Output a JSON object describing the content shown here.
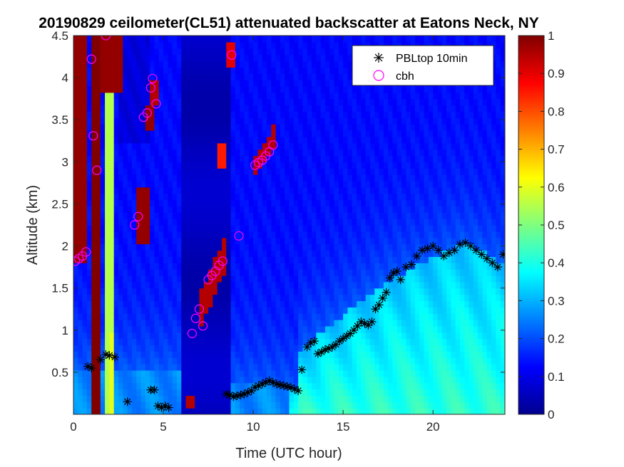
{
  "chart_data": {
    "type": "heatmap",
    "title": "20190829 ceilometer(CL51) attenuated backscatter at Eatons Neck, NY",
    "xlabel": "Time (UTC hour)",
    "ylabel": "Altitude (km)",
    "xlim": [
      0,
      24
    ],
    "ylim": [
      0,
      4.5
    ],
    "xticks": [
      0,
      5,
      10,
      15,
      20
    ],
    "yticks": [
      0.5,
      1,
      1.5,
      2,
      2.5,
      3,
      3.5,
      4,
      4.5
    ],
    "colorbar": {
      "colormap": "jet",
      "limits": [
        0,
        1
      ],
      "ticks": [
        0,
        0.1,
        0.2,
        0.3,
        0.4,
        0.5,
        0.6,
        0.7,
        0.8,
        0.9,
        1
      ]
    },
    "legend": {
      "location": "top-right",
      "entries": [
        "PBLtop 10min",
        "cbh"
      ]
    },
    "series": [
      {
        "name": "PBLtop 10min",
        "marker": "asterisk",
        "color": "#000000",
        "x": [
          0.8,
          1.0,
          1.5,
          1.8,
          2.0,
          2.3,
          3.0,
          4.3,
          4.5,
          4.7,
          4.9,
          5.1,
          5.3,
          8.5,
          8.7,
          8.9,
          9.1,
          9.3,
          9.5,
          9.7,
          9.9,
          10.1,
          10.3,
          10.5,
          10.7,
          10.9,
          11.1,
          11.3,
          11.5,
          11.7,
          11.9,
          12.1,
          12.3,
          12.5,
          12.7,
          13.0,
          13.2,
          13.4,
          13.6,
          13.8,
          14.0,
          14.2,
          14.4,
          14.6,
          14.8,
          15.0,
          15.2,
          15.4,
          15.6,
          15.8,
          16.0,
          16.2,
          16.4,
          16.6,
          16.8,
          17.0,
          17.2,
          17.4,
          17.6,
          17.8,
          18.0,
          18.2,
          18.5,
          18.8,
          19.1,
          19.4,
          19.7,
          20.0,
          20.3,
          20.6,
          20.9,
          21.2,
          21.5,
          21.8,
          22.1,
          22.4,
          22.7,
          23.0,
          23.3,
          23.6,
          23.9
        ],
        "y": [
          0.57,
          0.55,
          0.65,
          0.71,
          0.7,
          0.68,
          0.15,
          0.29,
          0.29,
          0.1,
          0.08,
          0.1,
          0.08,
          0.24,
          0.23,
          0.21,
          0.22,
          0.23,
          0.24,
          0.26,
          0.28,
          0.32,
          0.34,
          0.36,
          0.38,
          0.4,
          0.38,
          0.36,
          0.35,
          0.34,
          0.33,
          0.32,
          0.3,
          0.28,
          0.53,
          0.8,
          0.85,
          0.87,
          0.72,
          0.74,
          0.77,
          0.78,
          0.8,
          0.83,
          0.87,
          0.9,
          0.93,
          0.96,
          1.0,
          1.05,
          1.1,
          1.08,
          1.06,
          1.1,
          1.25,
          1.3,
          1.38,
          1.45,
          1.62,
          1.68,
          1.7,
          1.6,
          1.75,
          1.78,
          1.88,
          1.95,
          1.97,
          2.0,
          1.95,
          1.88,
          1.92,
          1.95,
          2.02,
          2.04,
          2.0,
          1.95,
          1.9,
          1.85,
          1.8,
          1.75,
          1.9
        ]
      },
      {
        "name": "cbh",
        "marker": "circle",
        "color": "#FF00FF",
        "x": [
          0.1,
          0.3,
          0.5,
          0.7,
          1.0,
          1.1,
          1.3,
          1.8,
          3.4,
          3.6,
          3.9,
          4.1,
          4.3,
          4.4,
          4.6,
          6.6,
          6.8,
          7.0,
          7.2,
          7.5,
          7.7,
          7.9,
          8.1,
          8.3,
          8.8,
          9.2,
          10.1,
          10.3,
          10.5,
          10.7,
          10.9,
          11.1
        ],
        "y": [
          1.82,
          1.85,
          1.88,
          1.93,
          4.22,
          3.31,
          2.9,
          4.5,
          2.25,
          2.35,
          3.53,
          3.58,
          3.88,
          3.99,
          3.69,
          0.96,
          1.14,
          1.25,
          1.05,
          1.6,
          1.65,
          1.7,
          1.77,
          1.82,
          4.27,
          2.12,
          2.96,
          2.99,
          3.02,
          3.07,
          3.12,
          3.2
        ]
      }
    ]
  }
}
